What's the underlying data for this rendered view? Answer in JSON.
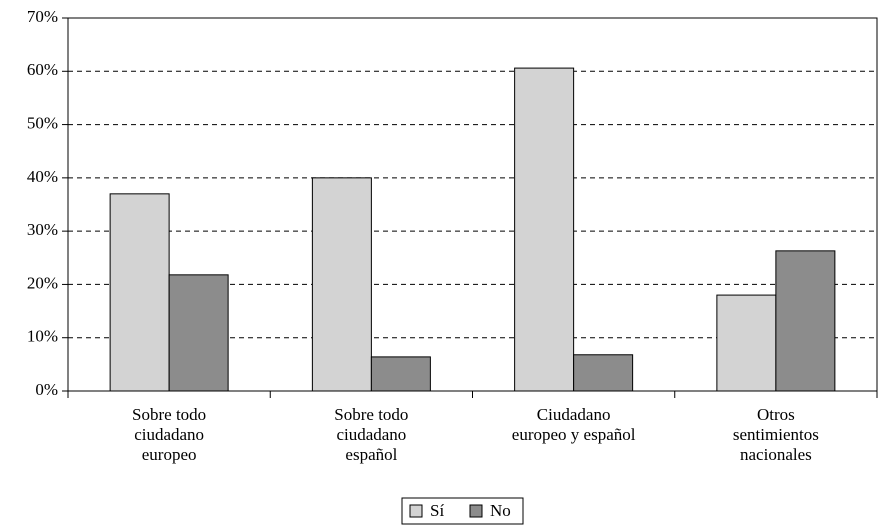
{
  "chart_data": {
    "type": "bar",
    "categories": [
      "Sobre todo\nciudadano\neuropeo",
      "Sobre todo\nciudadano\nespañol",
      "Ciudadano\neuropeo y español",
      "Otros\nsentimientos\nnacionales"
    ],
    "series": [
      {
        "name": "Sí",
        "color": "#d3d3d3",
        "values": [
          37,
          40,
          60.6,
          18
        ]
      },
      {
        "name": "No",
        "color": "#8c8c8c",
        "values": [
          21.8,
          6.4,
          6.8,
          26.3
        ]
      }
    ],
    "ylim": [
      0,
      70
    ],
    "yticks": [
      {
        "value": 0,
        "label": "0%"
      },
      {
        "value": 10,
        "label": "10%"
      },
      {
        "value": 20,
        "label": "20%"
      },
      {
        "value": 30,
        "label": "30%"
      },
      {
        "value": 40,
        "label": "40%"
      },
      {
        "value": 50,
        "label": "50%"
      },
      {
        "value": 60,
        "label": "60%"
      },
      {
        "value": 70,
        "label": "70%"
      }
    ],
    "grid": true,
    "legend": "bottom"
  }
}
